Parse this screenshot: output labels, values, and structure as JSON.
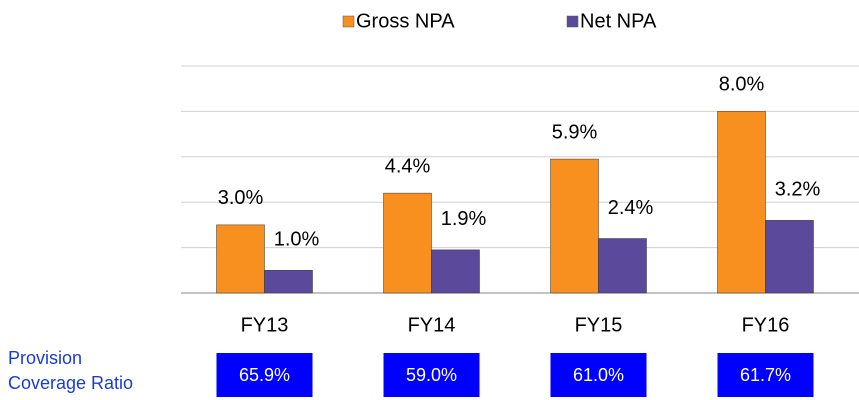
{
  "chart_data": {
    "type": "bar",
    "categories": [
      "FY13",
      "FY14",
      "FY15",
      "FY16"
    ],
    "series": [
      {
        "name": "Gross NPA",
        "color": "#f7901e",
        "values": [
          3.0,
          4.4,
          5.9,
          8.0
        ],
        "value_labels": [
          "3.0%",
          "4.4%",
          "5.9%",
          "8.0%"
        ]
      },
      {
        "name": "Net NPA",
        "color": "#5b4a9b",
        "values": [
          1.0,
          1.9,
          2.4,
          3.2
        ],
        "value_labels": [
          "1.0%",
          "1.9%",
          "2.4%",
          "3.2%"
        ]
      }
    ],
    "ylim": [
      0,
      10
    ],
    "yticks": [
      0,
      2,
      4,
      6,
      8,
      10
    ],
    "grid": true,
    "legend": "top",
    "coverage": {
      "label": "Provision Coverage Ratio",
      "color": "#0000ff",
      "values": [
        65.9,
        59.0,
        61.0,
        61.7
      ],
      "value_labels": [
        "65.9%",
        "59.0%",
        "61.0%",
        "61.7%"
      ]
    }
  }
}
